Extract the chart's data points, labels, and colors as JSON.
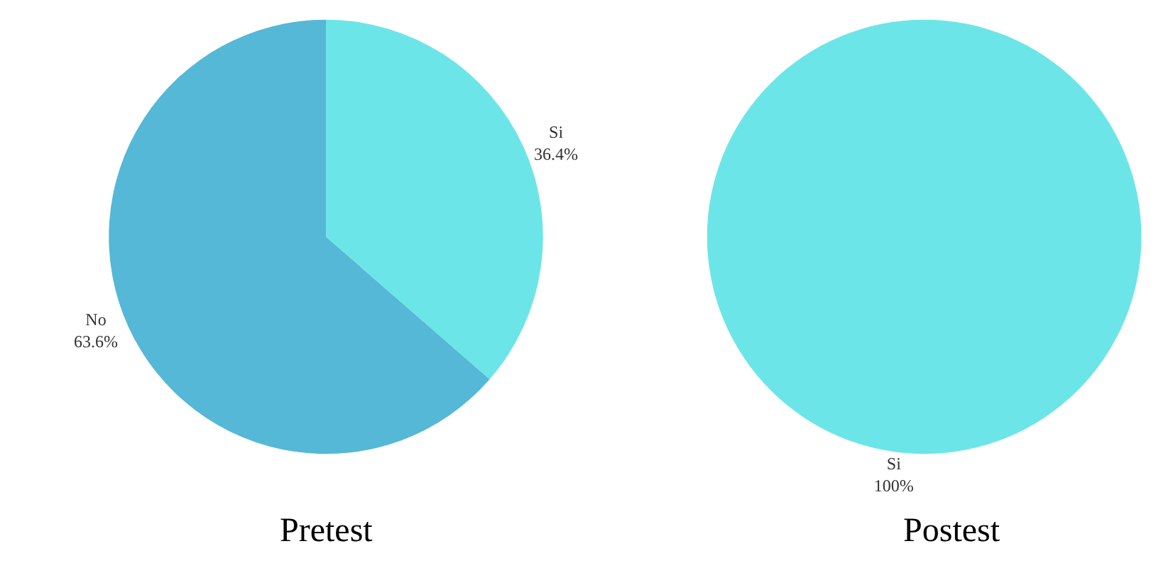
{
  "chart_data": [
    {
      "type": "pie",
      "title": "Pretest",
      "categories": [
        "Si",
        "No"
      ],
      "values": [
        36.4,
        63.6
      ],
      "colors": [
        "#6ce5e8",
        "#54b8d6"
      ],
      "value_labels": [
        "36.4%",
        "63.6%"
      ],
      "legend": false
    },
    {
      "type": "pie",
      "title": "Postest",
      "categories": [
        "Si"
      ],
      "values": [
        100
      ],
      "colors": [
        "#6ce5e8"
      ],
      "value_labels": [
        "100%"
      ],
      "legend": false
    }
  ]
}
